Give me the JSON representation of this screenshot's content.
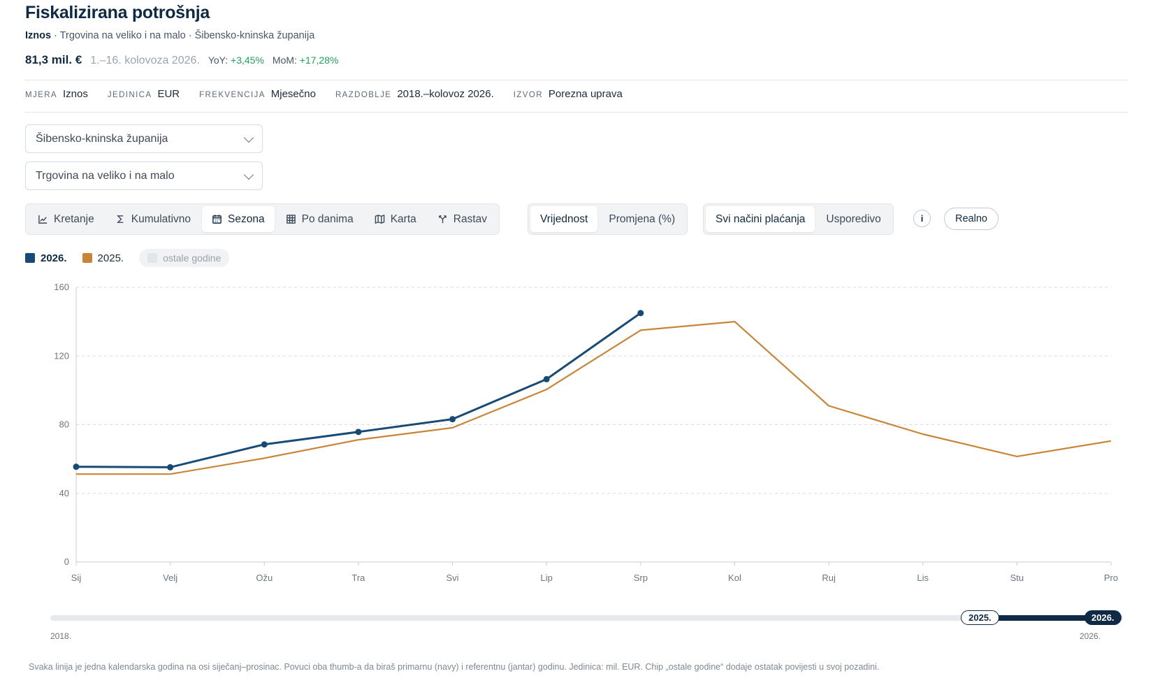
{
  "header": {
    "title": "Fiskalizirana potrošnja",
    "subtitle_measure": "Iznos",
    "subtitle_rest": " · Trgovina na veliko i na malo · Šibensko-kninska županija",
    "kpi_value": "81,3 mil. €",
    "kpi_period": "1.–16. kolovoza 2026.",
    "yoy_label": "YoY:",
    "yoy_value": "+3,45%",
    "mom_label": "MoM:",
    "mom_value": "+17,28%"
  },
  "meta": [
    {
      "key": "MJERA",
      "value": "Iznos"
    },
    {
      "key": "JEDINICA",
      "value": "EUR"
    },
    {
      "key": "FREKVENCIJA",
      "value": "Mjesečno"
    },
    {
      "key": "RAZDOBLJE",
      "value": "2018.–kolovoz 2026."
    },
    {
      "key": "IZVOR",
      "value": "Porezna uprava"
    }
  ],
  "filters": {
    "county": "Šibensko-kninska županija",
    "sector": "Trgovina na veliko i na malo"
  },
  "view_tabs": [
    {
      "label": "Kretanje",
      "icon": "line-chart-icon"
    },
    {
      "label": "Kumulativno",
      "icon": "sigma-icon"
    },
    {
      "label": "Sezona",
      "icon": "calendar-icon",
      "active": true
    },
    {
      "label": "Po danima",
      "icon": "grid-icon"
    },
    {
      "label": "Karta",
      "icon": "map-icon"
    },
    {
      "label": "Rastav",
      "icon": "split-icon"
    }
  ],
  "value_tabs": [
    {
      "label": "Vrijednost",
      "active": true
    },
    {
      "label": "Promjena (%)"
    }
  ],
  "payment_tabs": [
    {
      "label": "Svi načini plaćanja",
      "active": true
    },
    {
      "label": "Usporedivo"
    }
  ],
  "info_icon": "info-icon",
  "real_toggle": "Realno",
  "legend": {
    "primary": "2026.",
    "reference": "2025.",
    "others_chip": "ostale godine"
  },
  "colors": {
    "primary": "#174a75",
    "reference": "#c98536",
    "positive": "#1fa35c"
  },
  "chart_data": {
    "type": "line",
    "x": [
      "Sij",
      "Velj",
      "Ožu",
      "Tra",
      "Svi",
      "Lip",
      "Srp",
      "Kol",
      "Ruj",
      "Lis",
      "Stu",
      "Pro"
    ],
    "series": [
      {
        "name": "2026.",
        "values": [
          55.5,
          55.2,
          68.5,
          75.8,
          83.2,
          106.5,
          145.0,
          null,
          null,
          null,
          null,
          null
        ],
        "markers": true
      },
      {
        "name": "2025.",
        "values": [
          51.2,
          51.2,
          60.5,
          71.2,
          78.2,
          100.5,
          135.0,
          140.0,
          91.0,
          74.5,
          61.5,
          70.5
        ],
        "markers": false
      }
    ],
    "ylim": [
      0,
      160
    ],
    "yticks": [
      0,
      40,
      80,
      120,
      160
    ],
    "grid": true,
    "legend": "top-left",
    "xlabel": "",
    "ylabel": ""
  },
  "range": {
    "start_label": "2018.",
    "end_label": "2026.",
    "ref_year": "2025.",
    "primary_year": "2026.",
    "min": 2018,
    "max": 2026,
    "ref_value": 2025,
    "primary_value": 2026
  },
  "footnote": "Svaka linija je jedna kalendarska godina na osi siječanj–prosinac. Povuci oba thumb-a da biraš primarnu (navy) i referentnu (jantar) godinu. Jedinica: mil. EUR. Chip „ostale godine“ dodaje ostatak povijesti u svoj pozadini."
}
